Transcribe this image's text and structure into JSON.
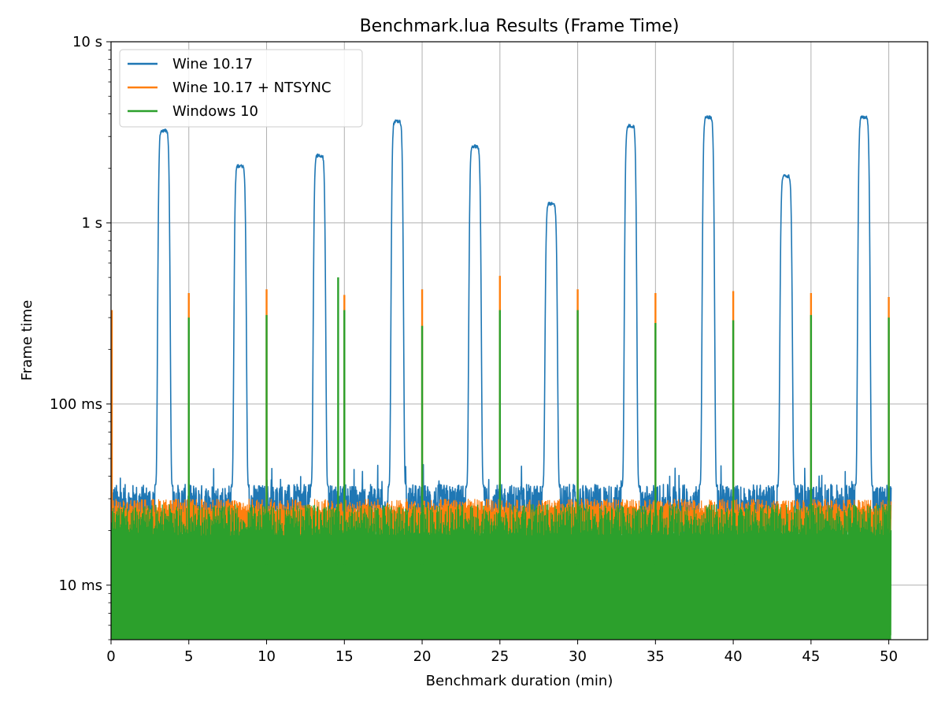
{
  "chart_data": {
    "type": "line",
    "title": "Benchmark.lua Results (Frame Time)",
    "xlabel": "Benchmark duration (min)",
    "ylabel": "Frame time",
    "xlim": [
      0,
      52.5
    ],
    "ylim": [
      0.005,
      10
    ],
    "y_scale": "log",
    "grid": true,
    "legend_position": "top-left",
    "x_ticks": [
      0,
      5,
      10,
      15,
      20,
      25,
      30,
      35,
      40,
      45,
      50
    ],
    "x_tick_labels": [
      "0",
      "5",
      "10",
      "15",
      "20",
      "25",
      "30",
      "35",
      "40",
      "45",
      "50"
    ],
    "y_ticks": [
      0.01,
      0.1,
      1,
      10
    ],
    "y_tick_labels": [
      "10 ms",
      "100 ms",
      "1 s",
      "10 s"
    ],
    "series": [
      {
        "name": "Wine 10.17",
        "color": "#1f77b4",
        "baseline_range": [
          0.018,
          0.036
        ],
        "peaks": [
          {
            "x": 3.4,
            "y": 3.3
          },
          {
            "x": 8.3,
            "y": 2.1
          },
          {
            "x": 13.4,
            "y": 2.4
          },
          {
            "x": 18.4,
            "y": 3.7
          },
          {
            "x": 23.4,
            "y": 2.7
          },
          {
            "x": 28.3,
            "y": 1.3
          },
          {
            "x": 33.4,
            "y": 3.5
          },
          {
            "x": 38.4,
            "y": 3.9
          },
          {
            "x": 43.4,
            "y": 1.85
          },
          {
            "x": 48.4,
            "y": 3.9
          }
        ]
      },
      {
        "name": "Wine 10.17 + NTSYNC",
        "color": "#ff7f0e",
        "baseline_range": [
          0.018,
          0.03
        ],
        "spikes": [
          {
            "x": 0.05,
            "y": 0.33
          },
          {
            "x": 5.0,
            "y": 0.41
          },
          {
            "x": 10.0,
            "y": 0.43
          },
          {
            "x": 15.0,
            "y": 0.4
          },
          {
            "x": 20.0,
            "y": 0.43
          },
          {
            "x": 25.0,
            "y": 0.51
          },
          {
            "x": 30.0,
            "y": 0.43
          },
          {
            "x": 35.0,
            "y": 0.41
          },
          {
            "x": 40.0,
            "y": 0.42
          },
          {
            "x": 45.0,
            "y": 0.41
          },
          {
            "x": 50.0,
            "y": 0.39
          }
        ]
      },
      {
        "name": "Windows 10",
        "color": "#2ca02c",
        "baseline_range": [
          0.005,
          0.028
        ],
        "spikes": [
          {
            "x": 5.0,
            "y": 0.3
          },
          {
            "x": 10.0,
            "y": 0.31
          },
          {
            "x": 14.6,
            "y": 0.5
          },
          {
            "x": 15.0,
            "y": 0.33
          },
          {
            "x": 20.0,
            "y": 0.27
          },
          {
            "x": 25.0,
            "y": 0.33
          },
          {
            "x": 30.0,
            "y": 0.33
          },
          {
            "x": 35.0,
            "y": 0.28
          },
          {
            "x": 40.0,
            "y": 0.29
          },
          {
            "x": 45.0,
            "y": 0.31
          },
          {
            "x": 50.0,
            "y": 0.3
          }
        ]
      }
    ]
  }
}
